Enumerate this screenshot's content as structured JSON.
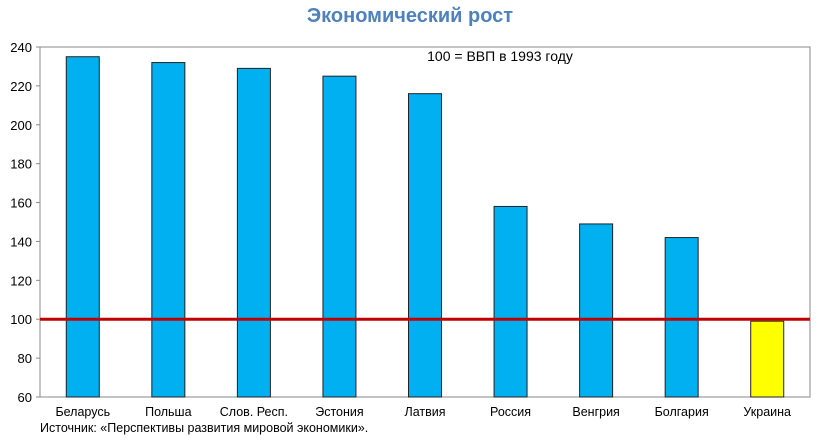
{
  "chart_data": {
    "type": "bar",
    "title": "Экономический рост",
    "annotation": "100 = ВВП в 1993 году",
    "categories": [
      "Беларусь",
      "Польша",
      "Слов. Респ.",
      "Эстония",
      "Латвия",
      "Россия",
      "Венгрия",
      "Болгария",
      "Украина"
    ],
    "values": [
      235,
      232,
      229,
      225,
      216,
      158,
      149,
      142,
      99
    ],
    "highlight_category": "Украина",
    "ylim": [
      60,
      240
    ],
    "yticks": [
      60,
      80,
      100,
      120,
      140,
      160,
      180,
      200,
      220,
      240
    ],
    "reference_line": 100,
    "xlabel": "",
    "ylabel": "",
    "grid": false,
    "colors": {
      "bar": "#00B0F0",
      "highlight": "#FFFF00",
      "reference": "#C00000",
      "title": "#4F81BD"
    }
  },
  "source": "Источник: «Перспективы развития мировой экономики»."
}
